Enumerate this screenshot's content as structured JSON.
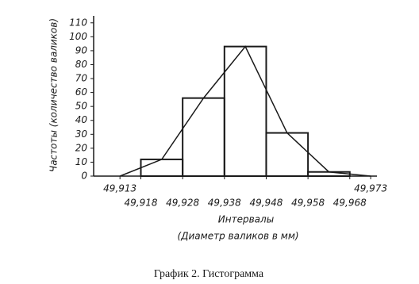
{
  "chart_data": {
    "type": "histogram",
    "title": "График 2. Гистограмма",
    "ylabel": "Частоты (количество валиков)",
    "xlabel": [
      "Интервалы",
      "(Диаметр валиков в мм)"
    ],
    "bins": [
      49.918,
      49.928,
      49.938,
      49.948,
      49.958,
      49.968
    ],
    "values": [
      12,
      56,
      93,
      31,
      3
    ],
    "polygon": {
      "x": [
        49.913,
        49.923,
        49.933,
        49.943,
        49.953,
        49.963,
        49.973
      ],
      "values": [
        0,
        12,
        56,
        93,
        31,
        3,
        0
      ]
    },
    "color": "#1a1a1a",
    "xlim": [
      49.9067,
      49.9745
    ],
    "ylim": [
      0,
      115
    ],
    "xticks": [
      {
        "value": 49.913,
        "label": "49,913"
      },
      {
        "value": 49.918,
        "label": "49,918"
      },
      {
        "value": 49.928,
        "label": "49,928"
      },
      {
        "value": 49.938,
        "label": "49,938"
      },
      {
        "value": 49.948,
        "label": "49,948"
      },
      {
        "value": 49.958,
        "label": "49,958"
      },
      {
        "value": 49.968,
        "label": "49,968"
      },
      {
        "value": 49.973,
        "label": "49,973"
      }
    ],
    "yticks": [
      0,
      10,
      20,
      30,
      40,
      50,
      60,
      70,
      80,
      90,
      100,
      110
    ]
  }
}
